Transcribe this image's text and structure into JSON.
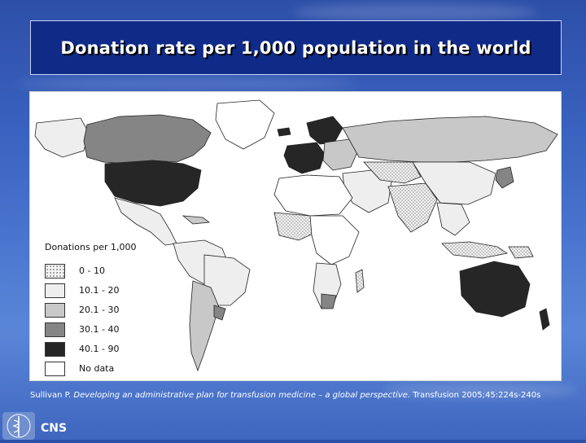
{
  "slide": {
    "title": "Donation rate per 1,000 population in the world",
    "footer_org": "CNS"
  },
  "legend": {
    "title": "Donations per 1,000",
    "items": [
      {
        "label": "0 - 10",
        "pattern": "dotted"
      },
      {
        "label": "10.1 - 20",
        "color": "#eeeeee"
      },
      {
        "label": "20.1 - 30",
        "color": "#c8c8c8"
      },
      {
        "label": "30.1 - 40",
        "color": "#858585"
      },
      {
        "label": "40.1 - 90",
        "color": "#262626"
      },
      {
        "label": "No data",
        "color": "#ffffff"
      }
    ]
  },
  "citation": {
    "author": "Sullivan P.",
    "article": "Developing an administrative plan for transfusion medicine – a global perspective.",
    "journal": "Transfusion 2005;45:224s-240s"
  },
  "colors": {
    "background": "#3a62c0",
    "title_box": "#102a87"
  },
  "icons": [
    "caduceus-logo-icon"
  ]
}
